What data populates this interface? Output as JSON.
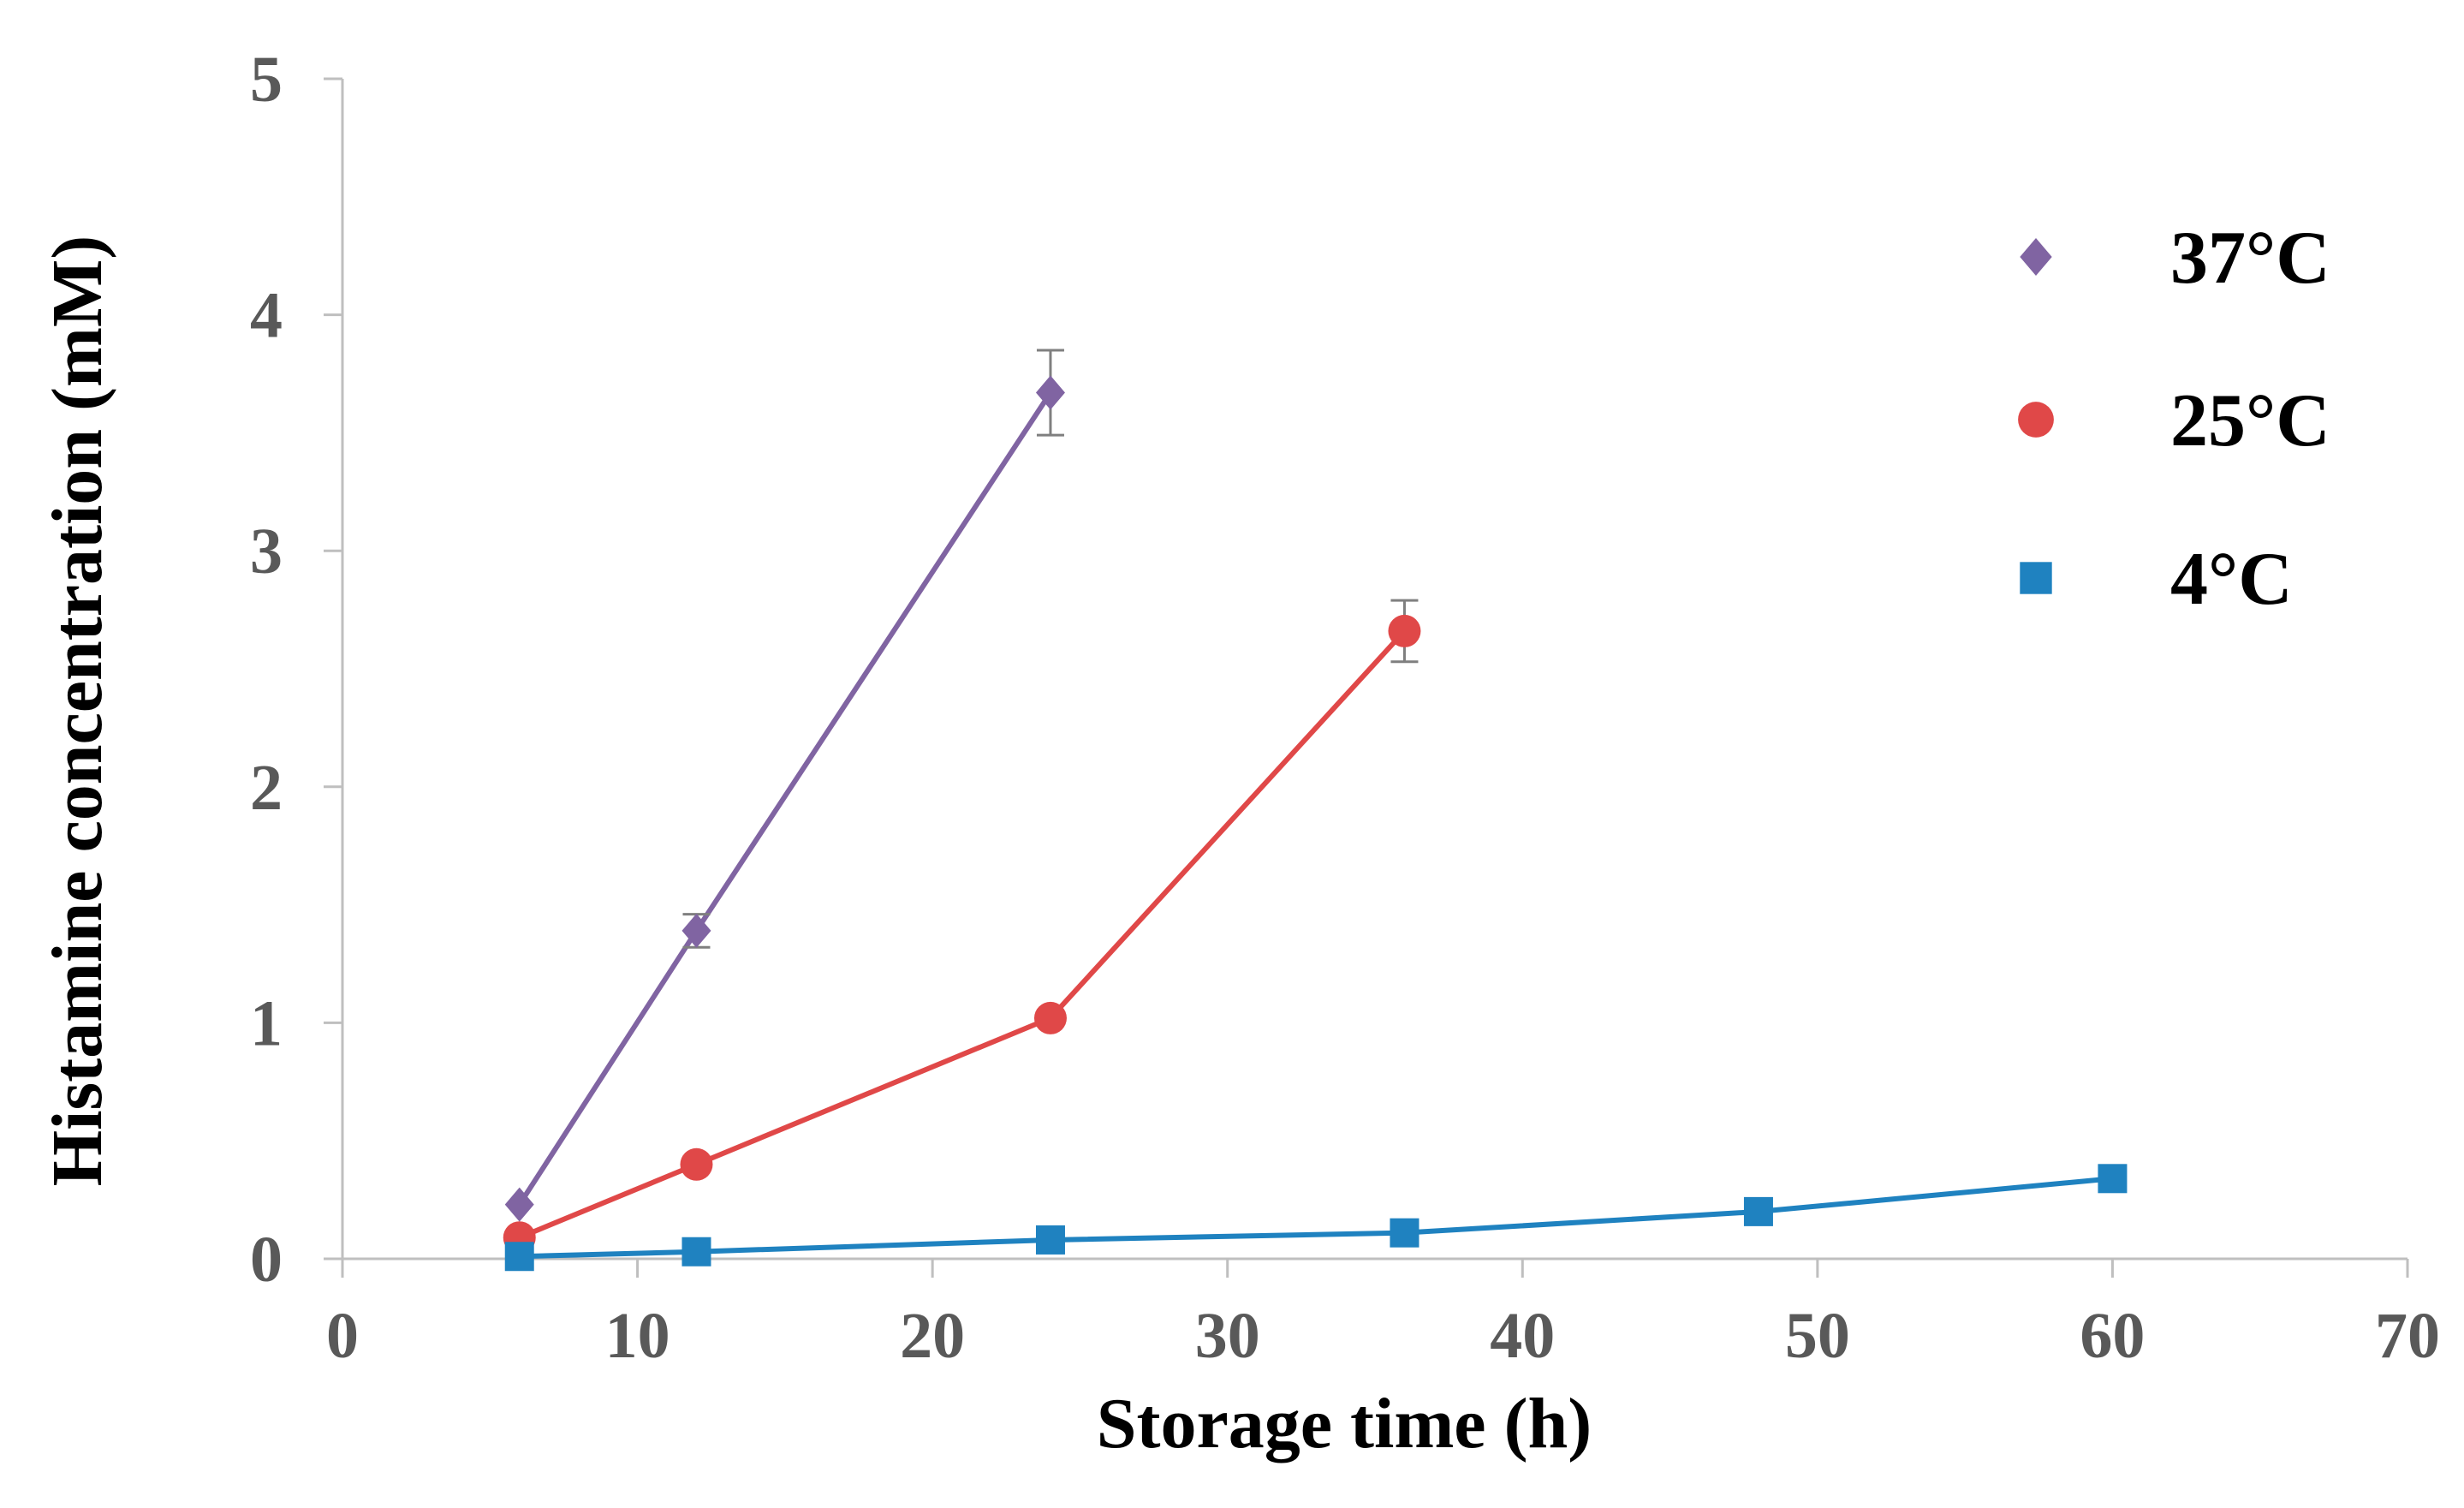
{
  "chart_data": {
    "type": "line",
    "title": "",
    "xlabel": "Storage time (h)",
    "ylabel": "Histamine concentration (mM)",
    "xlim": [
      0,
      70
    ],
    "ylim": [
      0,
      5
    ],
    "xticks": [
      "0",
      "10",
      "20",
      "30",
      "40",
      "50",
      "60",
      "70"
    ],
    "yticks": [
      "0",
      "1",
      "2",
      "3",
      "4",
      "5"
    ],
    "grid": false,
    "legend_position": "top-right",
    "series": [
      {
        "name": "37°C",
        "marker": "diamond",
        "color": "#8064A2",
        "x": [
          6,
          12,
          24
        ],
        "y": [
          0.23,
          1.39,
          3.67
        ],
        "error": [
          0.0,
          0.07,
          0.18
        ]
      },
      {
        "name": "25°C",
        "marker": "circle",
        "color": "#E04848",
        "x": [
          6,
          12,
          24,
          36
        ],
        "y": [
          0.09,
          0.4,
          1.02,
          2.66
        ],
        "error": [
          0.0,
          0.0,
          0.0,
          0.13
        ]
      },
      {
        "name": "4°C",
        "marker": "square",
        "color": "#1F82C0",
        "x": [
          6,
          12,
          24,
          36,
          48,
          60
        ],
        "y": [
          0.01,
          0.03,
          0.08,
          0.11,
          0.2,
          0.34
        ],
        "error": [
          0,
          0,
          0,
          0,
          0,
          0
        ]
      }
    ]
  }
}
